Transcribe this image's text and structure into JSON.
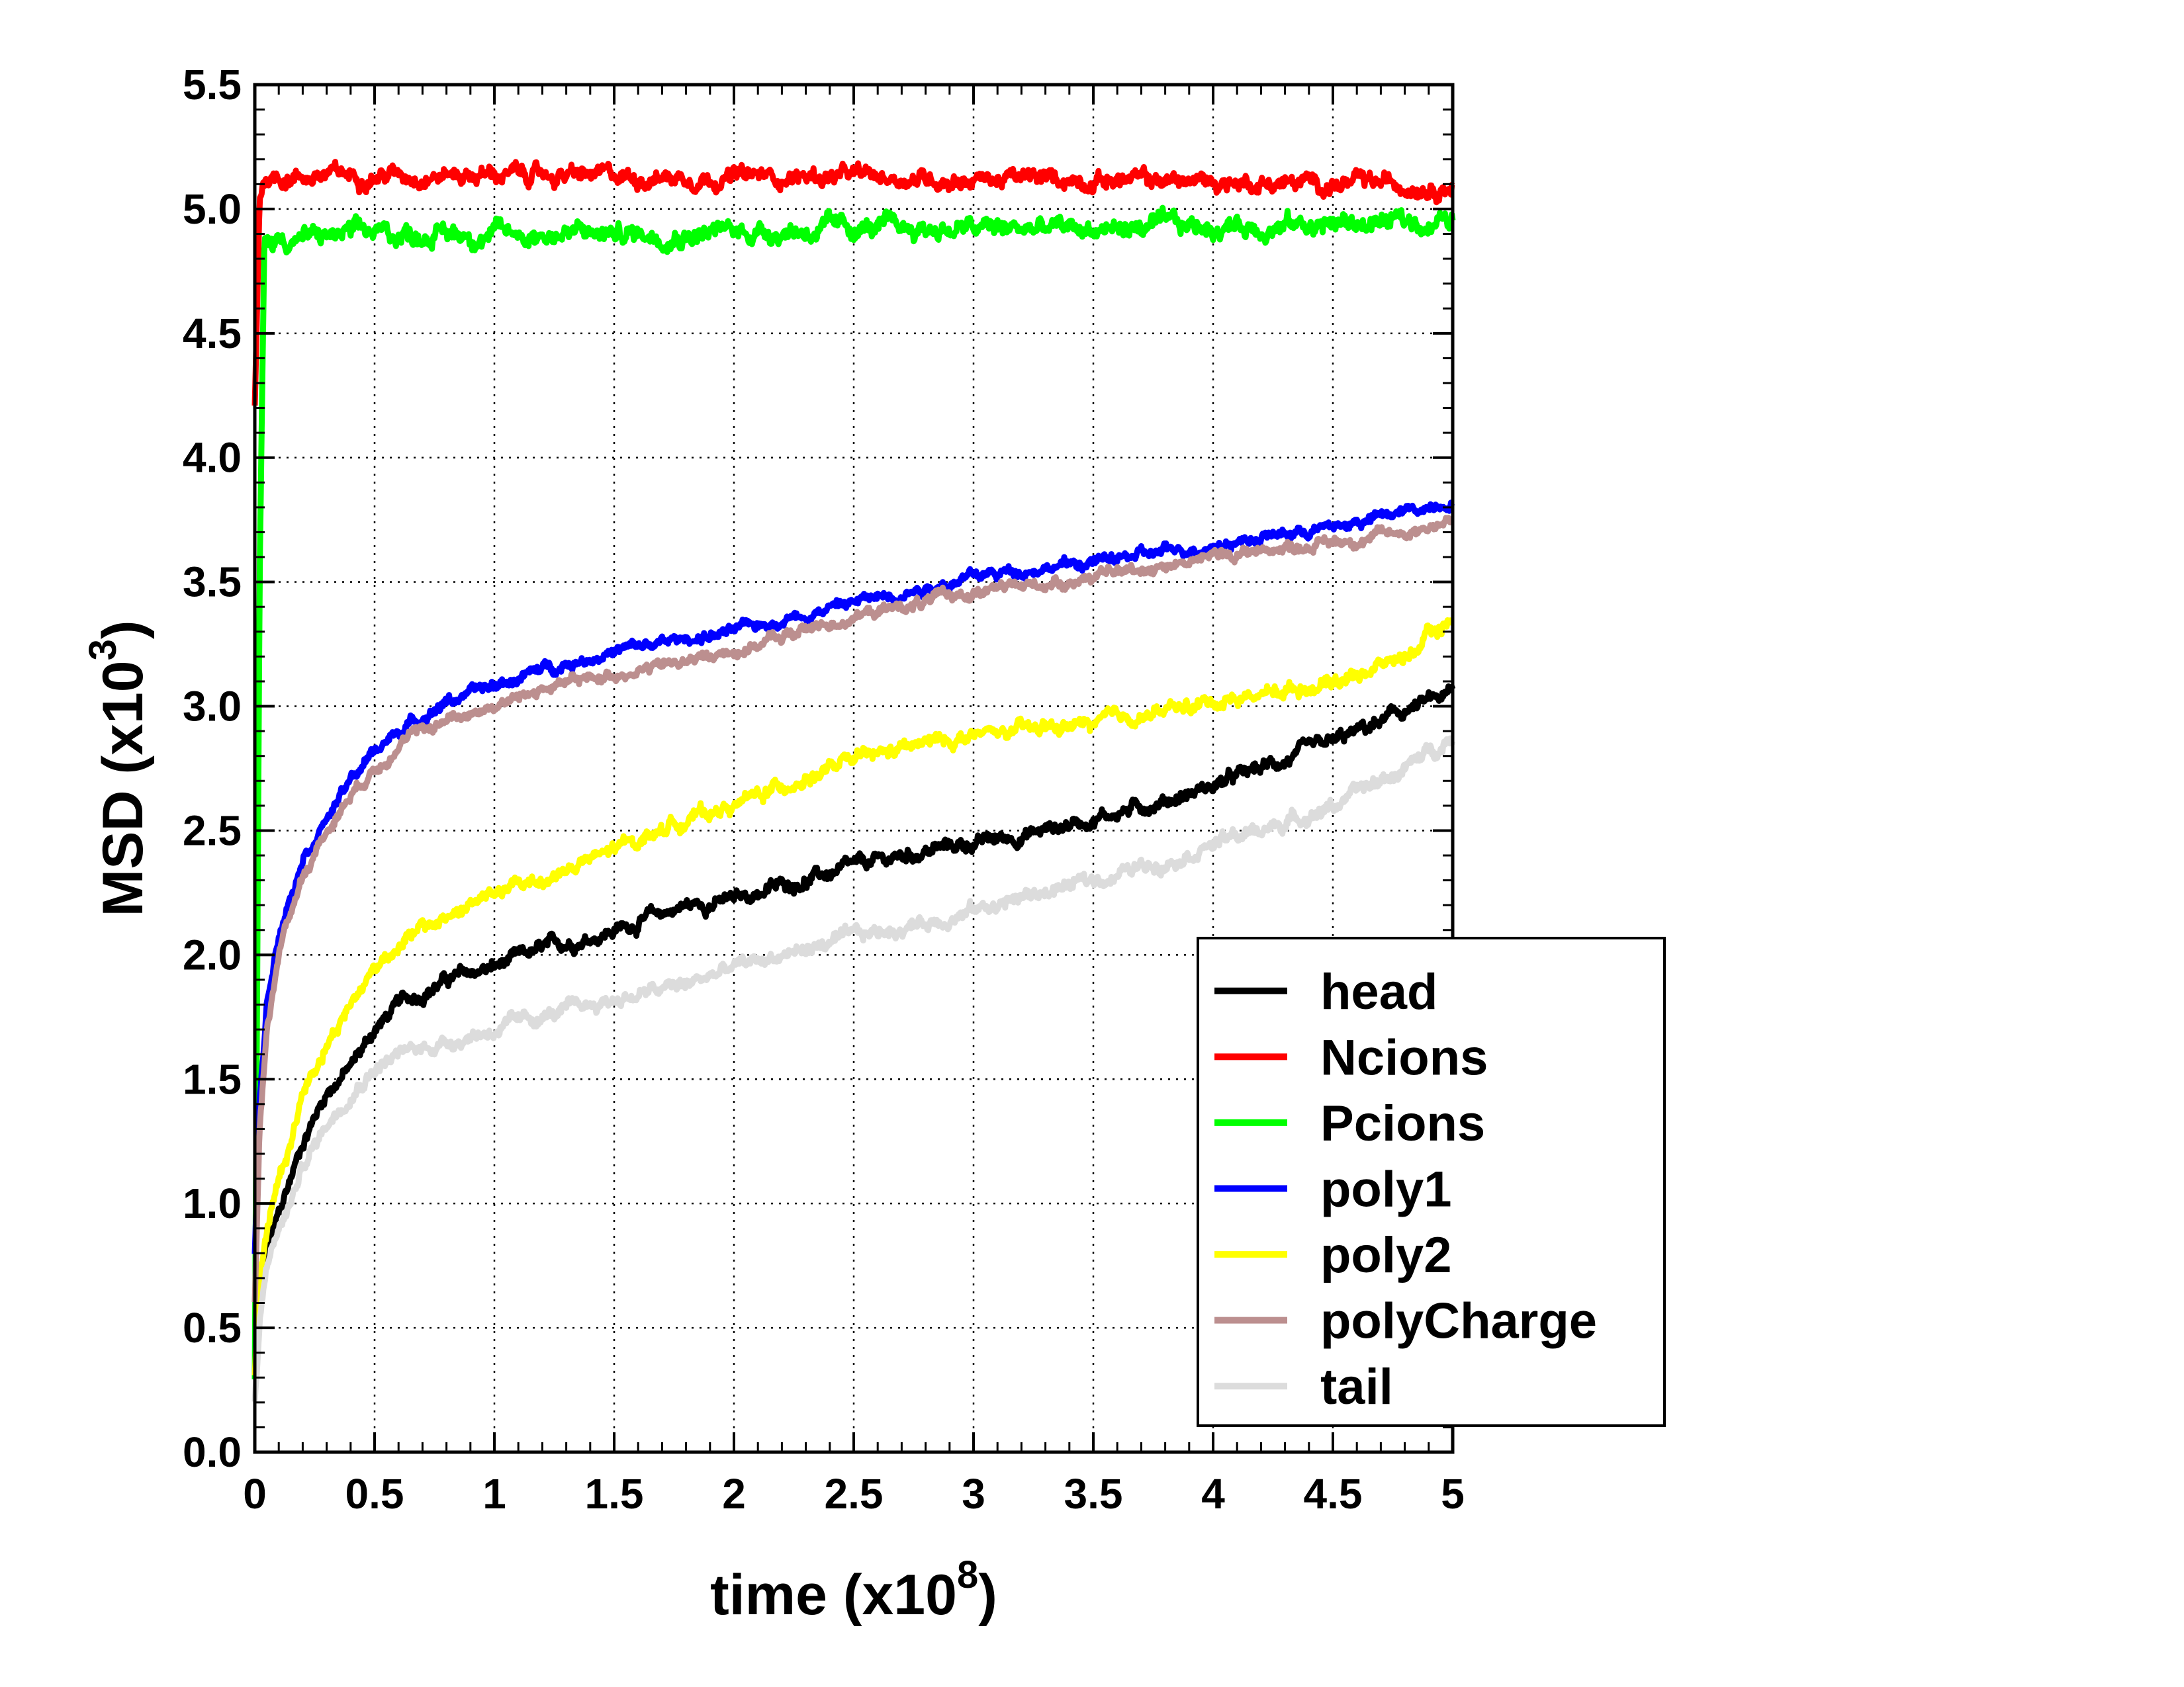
{
  "chart_data": {
    "type": "line",
    "xlabel": {
      "base": "time (x10",
      "sup": "8",
      "close": ")"
    },
    "ylabel": {
      "base": "MSD (x10",
      "sup": "3",
      "close": ")"
    },
    "xlim": [
      0,
      5
    ],
    "ylim": [
      0,
      5.5
    ],
    "x_ticks": [
      "0",
      "0.5",
      "1",
      "1.5",
      "2",
      "2.5",
      "3",
      "3.5",
      "4",
      "4.5",
      "5"
    ],
    "y_ticks": [
      "0.0",
      "0.5",
      "1.0",
      "1.5",
      "2.0",
      "2.5",
      "3.0",
      "3.5",
      "4.0",
      "4.5",
      "5.0",
      "5.5"
    ],
    "grid": true,
    "legend_position": "lower-right",
    "series": [
      {
        "name": "head",
        "color": "#000000",
        "noise": 0.025,
        "x": [
          0,
          0.02,
          0.05,
          0.1,
          0.15,
          0.2,
          0.3,
          0.4,
          0.5,
          0.6,
          0.8,
          1,
          1.2,
          1.5,
          1.8,
          2,
          2.2,
          2.5,
          2.8,
          3,
          3.2,
          3.5,
          3.8,
          4,
          4.2,
          4.5,
          4.8,
          5
        ],
        "y": [
          0.3,
          0.6,
          0.8,
          0.95,
          1.1,
          1.25,
          1.45,
          1.55,
          1.7,
          1.8,
          1.9,
          1.95,
          2.02,
          2.1,
          2.2,
          2.22,
          2.28,
          2.35,
          2.42,
          2.45,
          2.48,
          2.55,
          2.62,
          2.68,
          2.75,
          2.85,
          2.98,
          3.05
        ]
      },
      {
        "name": "Ncions",
        "color": "#ff0000",
        "noise": 0.03,
        "x": [
          0,
          0.02,
          0.04,
          0.1,
          0.5,
          1,
          1.5,
          2,
          2.5,
          3,
          3.5,
          4,
          4.5,
          5
        ],
        "y": [
          4.2,
          5.05,
          5.13,
          5.13,
          5.14,
          5.14,
          5.13,
          5.13,
          5.13,
          5.12,
          5.12,
          5.11,
          5.1,
          5.1
        ]
      },
      {
        "name": "Pcions",
        "color": "#00ff00",
        "noise": 0.035,
        "x": [
          0,
          0.02,
          0.04,
          0.1,
          0.5,
          1,
          1.5,
          2,
          2.5,
          3,
          3.5,
          4,
          4.5,
          5
        ],
        "y": [
          0.3,
          3.5,
          4.85,
          4.88,
          4.9,
          4.9,
          4.9,
          4.91,
          4.92,
          4.92,
          4.92,
          4.93,
          4.94,
          4.95
        ]
      },
      {
        "name": "poly1",
        "color": "#0000ff",
        "noise": 0.02,
        "x": [
          0,
          0.02,
          0.05,
          0.1,
          0.15,
          0.2,
          0.3,
          0.4,
          0.5,
          0.6,
          0.8,
          1,
          1.2,
          1.5,
          1.8,
          2,
          2.2,
          2.5,
          2.8,
          3,
          3.2,
          3.5,
          3.8,
          4,
          4.2,
          4.5,
          4.8,
          5
        ],
        "y": [
          0.8,
          1.4,
          1.8,
          2.1,
          2.25,
          2.4,
          2.55,
          2.7,
          2.82,
          2.9,
          3.02,
          3.08,
          3.15,
          3.22,
          3.27,
          3.3,
          3.35,
          3.42,
          3.48,
          3.52,
          3.55,
          3.58,
          3.62,
          3.65,
          3.68,
          3.72,
          3.78,
          3.83
        ]
      },
      {
        "name": "poly2",
        "color": "#ffff00",
        "noise": 0.025,
        "x": [
          0,
          0.02,
          0.05,
          0.1,
          0.15,
          0.2,
          0.3,
          0.4,
          0.5,
          0.6,
          0.8,
          1,
          1.2,
          1.5,
          1.8,
          2,
          2.2,
          2.5,
          2.8,
          3,
          3.2,
          3.5,
          3.8,
          4,
          4.2,
          4.5,
          4.8,
          5
        ],
        "y": [
          0.3,
          0.7,
          0.9,
          1.1,
          1.25,
          1.45,
          1.65,
          1.8,
          1.95,
          2.05,
          2.15,
          2.25,
          2.3,
          2.42,
          2.55,
          2.6,
          2.68,
          2.78,
          2.85,
          2.88,
          2.9,
          2.93,
          2.98,
          3.02,
          3.05,
          3.1,
          3.2,
          3.35
        ]
      },
      {
        "name": "polyCharge",
        "color": "#bc8f8f",
        "noise": 0.02,
        "x": [
          0,
          0.02,
          0.05,
          0.1,
          0.15,
          0.2,
          0.3,
          0.4,
          0.5,
          0.6,
          0.8,
          1,
          1.2,
          1.5,
          1.8,
          2,
          2.2,
          2.5,
          2.8,
          3,
          3.2,
          3.5,
          3.8,
          4,
          4.2,
          4.5,
          4.8,
          5
        ],
        "y": [
          0.6,
          1.3,
          1.7,
          2.0,
          2.18,
          2.32,
          2.5,
          2.65,
          2.75,
          2.85,
          2.95,
          3.0,
          3.07,
          3.13,
          3.18,
          3.22,
          3.28,
          3.36,
          3.42,
          3.46,
          3.48,
          3.52,
          3.57,
          3.6,
          3.63,
          3.66,
          3.7,
          3.75
        ]
      },
      {
        "name": "tail",
        "color": "#dcdcdc",
        "noise": 0.025,
        "x": [
          0,
          0.02,
          0.05,
          0.1,
          0.15,
          0.2,
          0.3,
          0.4,
          0.5,
          0.6,
          0.8,
          1,
          1.2,
          1.5,
          1.8,
          2,
          2.2,
          2.5,
          2.8,
          3,
          3.2,
          3.5,
          3.8,
          4,
          4.2,
          4.5,
          4.8,
          5
        ],
        "y": [
          0.2,
          0.5,
          0.75,
          0.9,
          1.0,
          1.15,
          1.32,
          1.45,
          1.55,
          1.6,
          1.65,
          1.7,
          1.75,
          1.82,
          1.88,
          1.95,
          2.0,
          2.07,
          2.13,
          2.18,
          2.23,
          2.3,
          2.38,
          2.45,
          2.5,
          2.6,
          2.75,
          2.88
        ]
      }
    ]
  }
}
